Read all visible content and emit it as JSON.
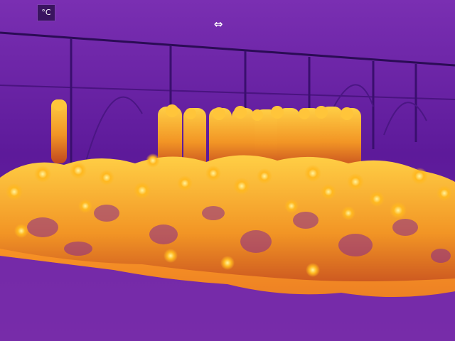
{
  "overlay": {
    "unit_label": "°C",
    "swap_icon": "⇔"
  },
  "palette": {
    "background": "#5e1a9c",
    "cool": "#6d23ad",
    "warm": "#d85a1a",
    "hot": "#ffb81f",
    "hottest": "#ffe680"
  }
}
